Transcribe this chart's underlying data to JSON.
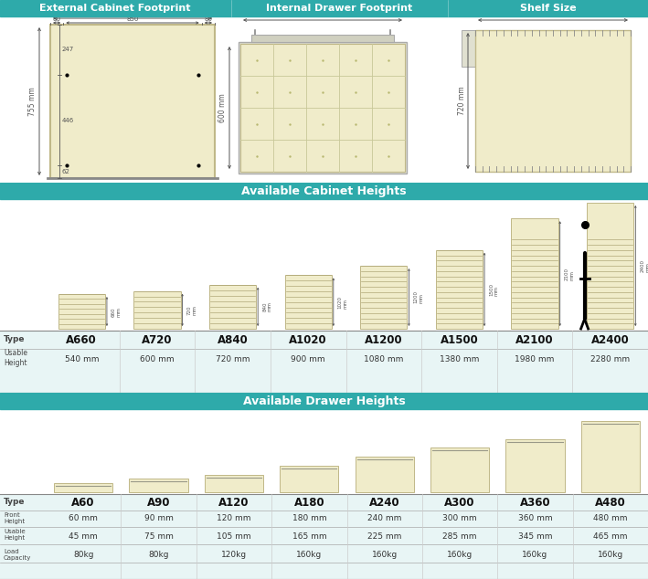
{
  "bg_color": "#ffffff",
  "header_color": "#2eaaaa",
  "header_text_color": "#ffffff",
  "cabinet_fill": "#f0ecca",
  "cabinet_edge": "#c0b888",
  "table_bg": "#e8f5f5",
  "dim_color": "#555555",
  "sec1_title": "External Cabinet Footprint",
  "sec2_title": "Internal Drawer Footprint",
  "sec3_title": "Shelf Size",
  "sec4_title": "Available Cabinet Heights",
  "sec5_title": "Available Drawer Heights",
  "cabinet_types": [
    "A660",
    "A720",
    "A840",
    "A1020",
    "A1200",
    "A1500",
    "A2100",
    "A2400"
  ],
  "cabinet_heights_mm": [
    660,
    720,
    840,
    1020,
    1200,
    1500,
    2100,
    2400
  ],
  "cabinet_usable_labels": [
    "540 mm",
    "600 mm",
    "720 mm",
    "900 mm",
    "1080 mm",
    "1380 mm",
    "1980 mm",
    "2280 mm"
  ],
  "drawer_types": [
    "A60",
    "A90",
    "A120",
    "A180",
    "A240",
    "A300",
    "A360",
    "A480"
  ],
  "drawer_front_mm": [
    60,
    90,
    120,
    180,
    240,
    300,
    360,
    480
  ],
  "drawer_front_labels": [
    "60 mm",
    "90 mm",
    "120 mm",
    "180 mm",
    "240 mm",
    "300 mm",
    "360 mm",
    "480 mm"
  ],
  "drawer_usable_labels2": [
    "45 mm",
    "75 mm",
    "105 mm",
    "165 mm",
    "225 mm",
    "285 mm",
    "345 mm",
    "465 mm"
  ],
  "drawer_load_labels": [
    "80kg",
    "80kg",
    "120kg",
    "160kg",
    "160kg",
    "160kg",
    "160kg",
    "160kg"
  ]
}
